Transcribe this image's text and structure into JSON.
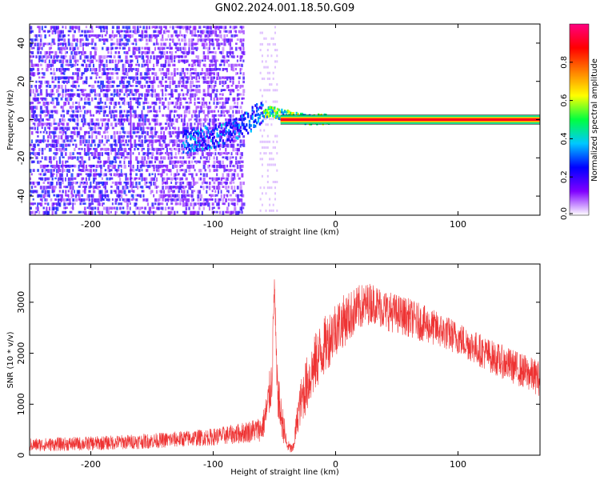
{
  "title": "GN02.2024.001.18.50.G09",
  "chart_data": [
    {
      "type": "heatmap",
      "xlabel": "Height of straight line (km)",
      "ylabel": "Frequency (Hz)",
      "xlim": [
        -250,
        167
      ],
      "ylim": [
        -50,
        50
      ],
      "x_ticks": [
        -200,
        -100,
        0,
        100
      ],
      "y_ticks": [
        -40,
        -20,
        0,
        20,
        40
      ],
      "ridge": {
        "x": [
          -125,
          -110,
          -95,
          -80,
          -65,
          -55,
          -40,
          -25,
          -10,
          0,
          50,
          100,
          167
        ],
        "freq": [
          -12,
          -10,
          -8,
          -5,
          2,
          4,
          2,
          0,
          0,
          0,
          0,
          0,
          0
        ]
      },
      "colorbar": {
        "label": "Normalized spectral amplitude",
        "range": [
          0,
          1
        ],
        "ticks": [
          "0.0",
          "0.2",
          "0.4",
          "0.6",
          "0.8"
        ],
        "colors": [
          "#ffffff",
          "#8000ff",
          "#0000ff",
          "#00c8ff",
          "#00ff40",
          "#ffff00",
          "#ff8000",
          "#ff0000",
          "#ff0080"
        ]
      }
    },
    {
      "type": "line",
      "xlabel": "Height of straight line (km)",
      "ylabel": "SNR (10 * v/v)",
      "xlim": [
        -250,
        167
      ],
      "ylim": [
        0,
        3750
      ],
      "x_ticks": [
        -200,
        -100,
        0,
        100
      ],
      "y_ticks": [
        0,
        1000,
        2000,
        3000
      ],
      "color": "#ee3333",
      "series_envelope": {
        "x": [
          -250,
          -200,
          -150,
          -100,
          -80,
          -60,
          -56,
          -52,
          -50,
          -48,
          -45,
          -42,
          -40,
          -35,
          -30,
          -25,
          -15,
          0,
          20,
          30,
          40,
          60,
          100,
          130,
          167
        ],
        "mean": [
          200,
          230,
          280,
          360,
          420,
          520,
          900,
          1500,
          3400,
          1400,
          800,
          500,
          200,
          100,
          900,
          1300,
          1900,
          2500,
          2900,
          3000,
          2850,
          2700,
          2300,
          1900,
          1500
        ],
        "amp": [
          130,
          140,
          150,
          170,
          200,
          250,
          400,
          500,
          300,
          500,
          400,
          300,
          120,
          100,
          400,
          550,
          600,
          550,
          450,
          400,
          400,
          380,
          330,
          330,
          350
        ]
      }
    }
  ]
}
